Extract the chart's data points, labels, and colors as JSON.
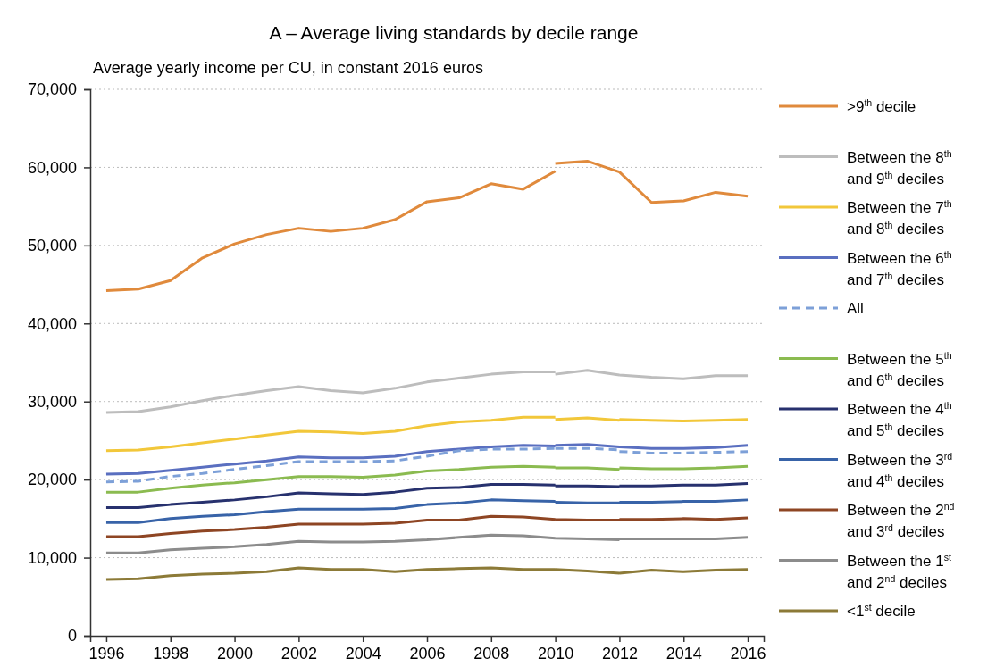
{
  "chart_data": {
    "type": "line",
    "title": "A – Average living standards by decile range",
    "ylabel": "Average yearly income per CU, in constant 2016 euros",
    "x": [
      1996,
      1997,
      1998,
      1999,
      2000,
      2001,
      2002,
      2003,
      2004,
      2005,
      2006,
      2007,
      2008,
      2009,
      2010,
      2010,
      2011,
      2012,
      2012,
      2013,
      2014,
      2015,
      2016
    ],
    "xlim": [
      1995.5,
      2016.5
    ],
    "xticks": [
      1996,
      1998,
      2000,
      2002,
      2004,
      2006,
      2008,
      2010,
      2012,
      2014,
      2016
    ],
    "ylim": [
      0,
      70000
    ],
    "yticks": [
      0,
      {
        "value": 10000,
        "label": "10,000"
      },
      {
        "value": 20000,
        "label": "20,000"
      },
      {
        "value": 30000,
        "label": "30,000"
      },
      {
        "value": 40000,
        "label": "40,000"
      },
      {
        "value": 50000,
        "label": "50,000"
      },
      {
        "value": 60000,
        "label": "60,000"
      },
      {
        "value": 70000,
        "label": "70,000"
      }
    ],
    "grid": "y",
    "legend": "right",
    "line_style": "solid",
    "series": [
      {
        "name": ">9$^{th}$ decile",
        "color": "#e08a3c",
        "values": [
          44200,
          44400,
          45500,
          48400,
          50200,
          51400,
          52200,
          51800,
          52200,
          53300,
          55600,
          56100,
          57900,
          57200,
          59500,
          60500,
          60800,
          59400,
          59400,
          55500,
          55700,
          56800,
          56300
        ]
      },
      {
        "name": "Between the 8$^{th}$ and 9$^{th}$ deciles",
        "color": "#bdbdbd",
        "values": [
          28600,
          28700,
          29300,
          30100,
          30800,
          31400,
          31900,
          31400,
          31100,
          31700,
          32500,
          33000,
          33500,
          33800,
          33800,
          33500,
          34000,
          33400,
          33400,
          33100,
          32900,
          33300,
          33300
        ]
      },
      {
        "name": "Between the 7$^{th}$ and 8$^{th}$ deciles",
        "color": "#f2c73a",
        "values": [
          23700,
          23800,
          24200,
          24700,
          25200,
          25700,
          26200,
          26100,
          25900,
          26200,
          26900,
          27400,
          27600,
          28000,
          28000,
          27700,
          27900,
          27600,
          27700,
          27600,
          27500,
          27600,
          27700
        ]
      },
      {
        "name": "Between the 6$^{th}$ and 7$^{th}$ deciles",
        "color": "#5a6fc0",
        "values": [
          20700,
          20800,
          21200,
          21600,
          22000,
          22400,
          22900,
          22800,
          22800,
          23000,
          23600,
          23900,
          24200,
          24400,
          24300,
          24400,
          24500,
          24200,
          24200,
          24000,
          24000,
          24100,
          24400
        ]
      },
      {
        "name": "All",
        "color": "#7da0d8",
        "line_style": "dashed",
        "values": [
          19700,
          19800,
          20400,
          20800,
          21300,
          21800,
          22300,
          22300,
          22300,
          22400,
          23000,
          23700,
          23900,
          23900,
          24000,
          24000,
          24000,
          23800,
          23600,
          23400,
          23400,
          23500,
          23600
        ]
      },
      {
        "name": "Between the 5$^{th}$ and 6$^{th}$ deciles",
        "color": "#8bbb50",
        "values": [
          18400,
          18400,
          18900,
          19300,
          19600,
          20000,
          20400,
          20400,
          20300,
          20600,
          21100,
          21300,
          21600,
          21700,
          21600,
          21500,
          21500,
          21300,
          21500,
          21400,
          21400,
          21500,
          21700
        ]
      },
      {
        "name": "Between the 4$^{th}$ and 5$^{th}$ deciles",
        "color": "#27316e",
        "values": [
          16400,
          16400,
          16800,
          17100,
          17400,
          17800,
          18300,
          18200,
          18100,
          18400,
          18900,
          19000,
          19400,
          19400,
          19300,
          19200,
          19200,
          19100,
          19200,
          19200,
          19300,
          19300,
          19500
        ]
      },
      {
        "name": "Between the 3$^{rd}$ and 4$^{th}$ deciles",
        "color": "#3863a8",
        "values": [
          14500,
          14500,
          15000,
          15300,
          15500,
          15900,
          16200,
          16200,
          16200,
          16300,
          16800,
          17000,
          17400,
          17300,
          17200,
          17100,
          17000,
          17000,
          17100,
          17100,
          17200,
          17200,
          17400
        ]
      },
      {
        "name": "Between the 2$^{nd}$ and 3$^{rd}$ deciles",
        "color": "#8e4523",
        "values": [
          12700,
          12700,
          13100,
          13400,
          13600,
          13900,
          14300,
          14300,
          14300,
          14400,
          14800,
          14800,
          15300,
          15200,
          14900,
          14900,
          14800,
          14800,
          14900,
          14900,
          15000,
          14900,
          15100
        ]
      },
      {
        "name": "Between the 1$^{st}$ and 2$^{nd}$ deciles",
        "color": "#8c8c8c",
        "values": [
          10600,
          10600,
          11000,
          11200,
          11400,
          11700,
          12100,
          12000,
          12000,
          12100,
          12300,
          12600,
          12900,
          12800,
          12500,
          12500,
          12400,
          12300,
          12400,
          12400,
          12400,
          12400,
          12600
        ]
      },
      {
        "name": "<1$^{st}$ decile",
        "color": "#8c7a37",
        "values": [
          7200,
          7300,
          7700,
          7900,
          8000,
          8200,
          8700,
          8500,
          8500,
          8200,
          8500,
          8600,
          8700,
          8500,
          8500,
          8500,
          8300,
          8000,
          8000,
          8400,
          8200,
          8400,
          8500
        ]
      }
    ]
  }
}
